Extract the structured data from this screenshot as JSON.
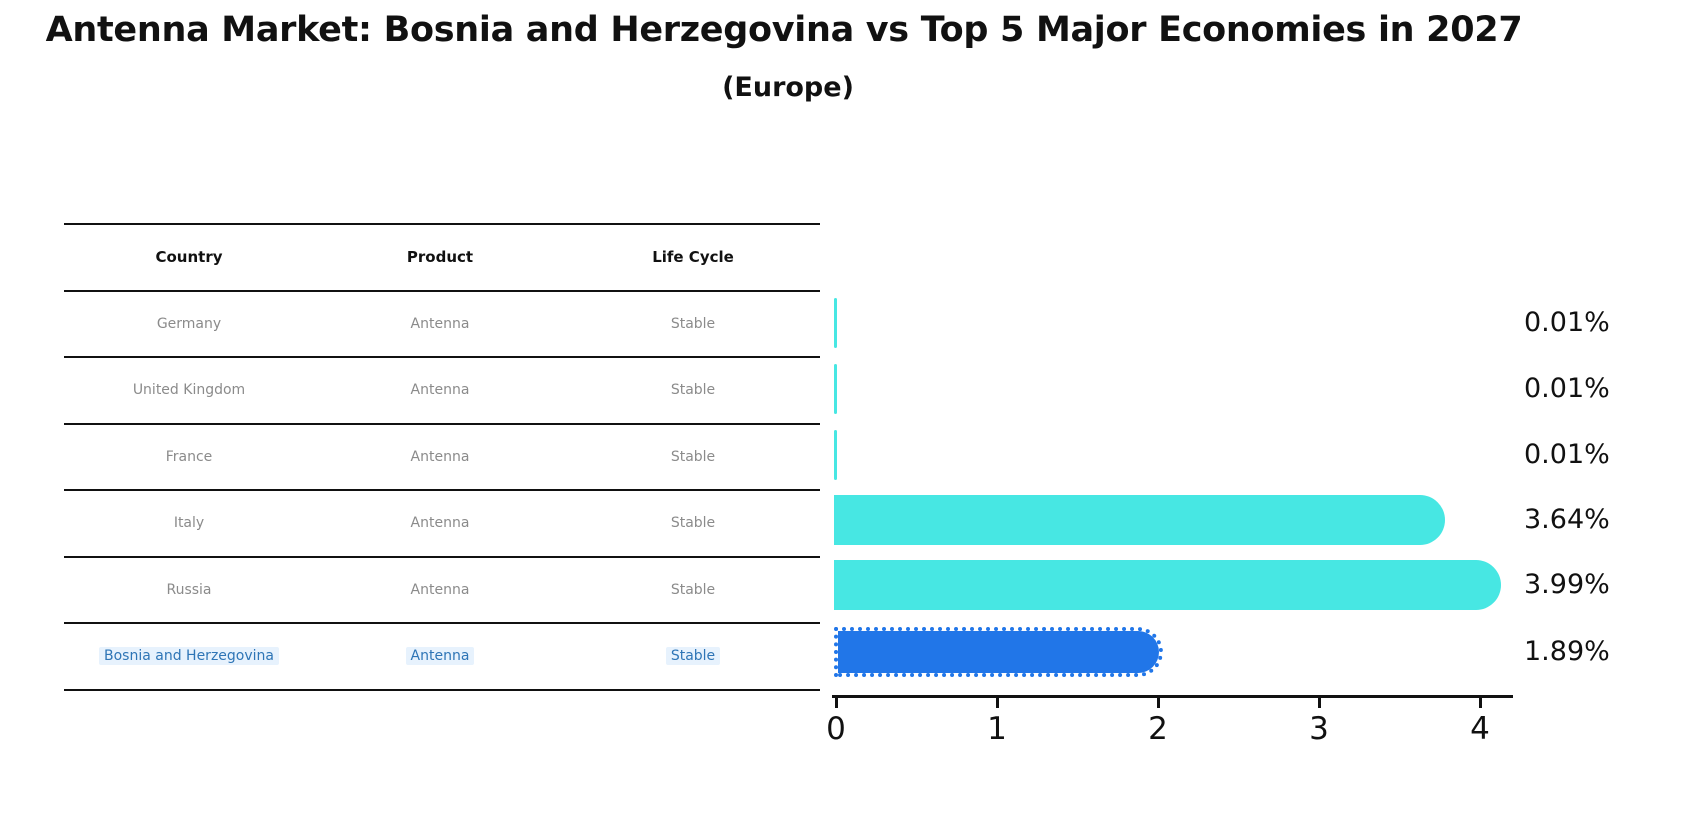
{
  "title": "Antenna Market: Bosnia and Herzegovina vs Top 5 Major Economies in 2027",
  "subtitle": "(Europe)",
  "table": {
    "headers": {
      "country": "Country",
      "product": "Product",
      "life_cycle": "Life Cycle"
    },
    "rows": [
      {
        "country": "Germany",
        "product": "Antenna",
        "life_cycle": "Stable",
        "highlighted": false
      },
      {
        "country": "United Kingdom",
        "product": "Antenna",
        "life_cycle": "Stable",
        "highlighted": false
      },
      {
        "country": "France",
        "product": "Antenna",
        "life_cycle": "Stable",
        "highlighted": false
      },
      {
        "country": "Italy",
        "product": "Antenna",
        "life_cycle": "Stable",
        "highlighted": false
      },
      {
        "country": "Russia",
        "product": "Antenna",
        "life_cycle": "Stable",
        "highlighted": false
      },
      {
        "country": "Bosnia and Herzegovina",
        "product": "Antenna",
        "life_cycle": "Stable",
        "highlighted": true
      }
    ]
  },
  "chart_data": {
    "type": "bar",
    "orientation": "horizontal",
    "title": "Antenna Market: Bosnia and Herzegovina vs Top 5 Major Economies in 2027",
    "subtitle": "(Europe)",
    "categories": [
      "Germany",
      "United Kingdom",
      "France",
      "Italy",
      "Russia",
      "Bosnia and Herzegovina"
    ],
    "values": [
      0.01,
      0.01,
      0.01,
      3.64,
      3.99,
      1.89
    ],
    "value_labels": [
      "0.01%",
      "0.01%",
      "0.01%",
      "3.64%",
      "3.99%",
      "1.89%"
    ],
    "highlight_index": 5,
    "xlim": [
      0,
      4.2
    ],
    "x_ticks": [
      0,
      1,
      2,
      3,
      4
    ],
    "x_tick_labels": [
      "0",
      "1",
      "2",
      "3",
      "4"
    ],
    "grid": false,
    "legend": false,
    "colors": {
      "bar_default": "#47e7e3",
      "bar_highlight": "#2176e8",
      "highlight_row_text": "#2e75b6",
      "table_text": "#8b8b8b",
      "axis": "#111111"
    }
  }
}
